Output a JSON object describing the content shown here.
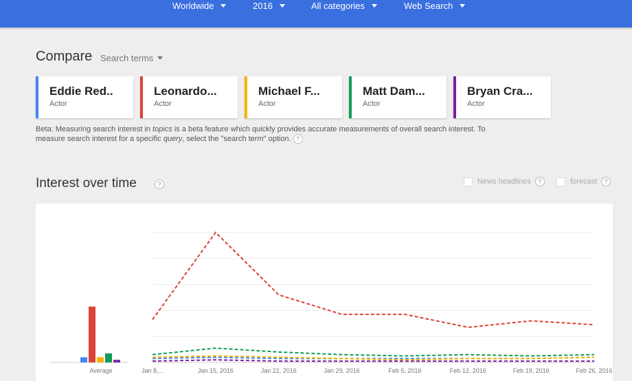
{
  "filters": [
    {
      "label": "Worldwide"
    },
    {
      "label": "2016"
    },
    {
      "label": "All categories"
    },
    {
      "label": "Web Search"
    }
  ],
  "compare": {
    "title": "Compare",
    "search_terms_label": "Search terms"
  },
  "cards": [
    {
      "name": "Eddie Red..",
      "type": "Actor",
      "color": "#4285f4"
    },
    {
      "name": "Leonardo...",
      "type": "Actor",
      "color": "#db4437"
    },
    {
      "name": "Michael F...",
      "type": "Actor",
      "color": "#f4b400"
    },
    {
      "name": "Matt Dam...",
      "type": "Actor",
      "color": "#0f9d58"
    },
    {
      "name": "Bryan Cra...",
      "type": "Actor",
      "color": "#7b1fa2"
    }
  ],
  "beta": {
    "part1": "Beta: Measuring search interest in ",
    "topics": "topics",
    "part2": " is a beta feature which quickly provides accurate measurements of overall search interest. To measure search interest for a specific ",
    "query": "query",
    "part3": ", select the \"search term\" option. "
  },
  "interest_over_time": {
    "title": "Interest over time",
    "news_headlines_label": "News headlines",
    "forecast_label": "forecast"
  },
  "chart_data": {
    "type": "line",
    "average_label": "Average",
    "x": [
      "Jan 8,...",
      "Jan 15, 2016",
      "Jan 22, 2016",
      "Jan 29, 2016",
      "Feb 5, 2016",
      "Feb 12, 2016",
      "Feb 19, 2016",
      "Feb 26, 2016"
    ],
    "ylim": [
      0,
      100
    ],
    "grid": true,
    "series": [
      {
        "name": "Eddie Red..",
        "color": "#4285f4",
        "average": 4,
        "values": [
          3,
          4,
          3,
          3,
          3,
          3,
          3,
          4
        ]
      },
      {
        "name": "Leonardo...",
        "color": "#db4437",
        "average": 43,
        "values": [
          33,
          100,
          52,
          37,
          37,
          27,
          32,
          29
        ]
      },
      {
        "name": "Michael F...",
        "color": "#f4b400",
        "average": 4,
        "values": [
          4,
          5,
          4,
          3,
          2,
          3,
          3,
          4
        ]
      },
      {
        "name": "Matt Dam...",
        "color": "#0f9d58",
        "average": 7,
        "values": [
          6,
          11,
          8,
          6,
          5,
          6,
          5,
          6
        ]
      },
      {
        "name": "Bryan Cra...",
        "color": "#7b1fa2",
        "average": 2,
        "values": [
          1,
          2,
          1,
          1,
          1,
          1,
          1,
          1
        ]
      }
    ]
  }
}
